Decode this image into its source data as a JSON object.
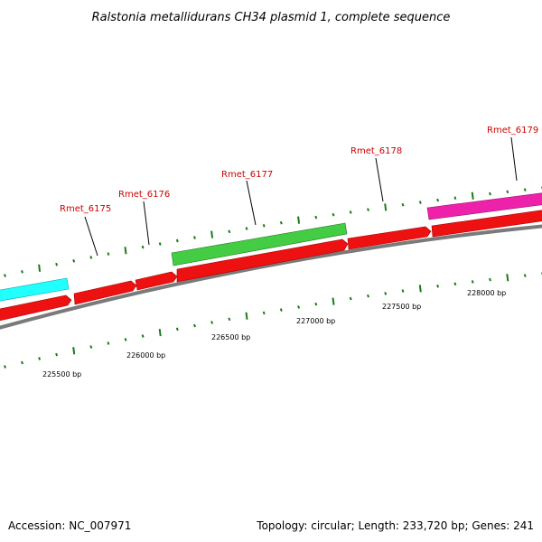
{
  "title": "Ralstonia metallidurans CH34 plasmid 1, complete sequence",
  "footer": {
    "accession": "Accession: NC_007971",
    "summary": "Topology: circular; Length: 233,720 bp; Genes: 241"
  },
  "genes": [
    {
      "label": "Rmet_6175"
    },
    {
      "label": "Rmet_6176"
    },
    {
      "label": "Rmet_6177"
    },
    {
      "label": "Rmet_6178"
    },
    {
      "label": "Rmet_6179"
    }
  ],
  "ticks": [
    {
      "label": "225500 bp"
    },
    {
      "label": "226000 bp"
    },
    {
      "label": "226500 bp"
    },
    {
      "label": "227000 bp"
    },
    {
      "label": "227500 bp"
    },
    {
      "label": "228000 bp"
    }
  ],
  "colors": {
    "cds": "#ee1111",
    "cds_dark": "#aa0000",
    "feature_cyan": "#22ffff",
    "feature_green": "#44cc44",
    "feature_magenta": "#ee22aa",
    "backbone": "#888888",
    "tick": "#1a7a1a",
    "label_red": "#cc0000"
  }
}
